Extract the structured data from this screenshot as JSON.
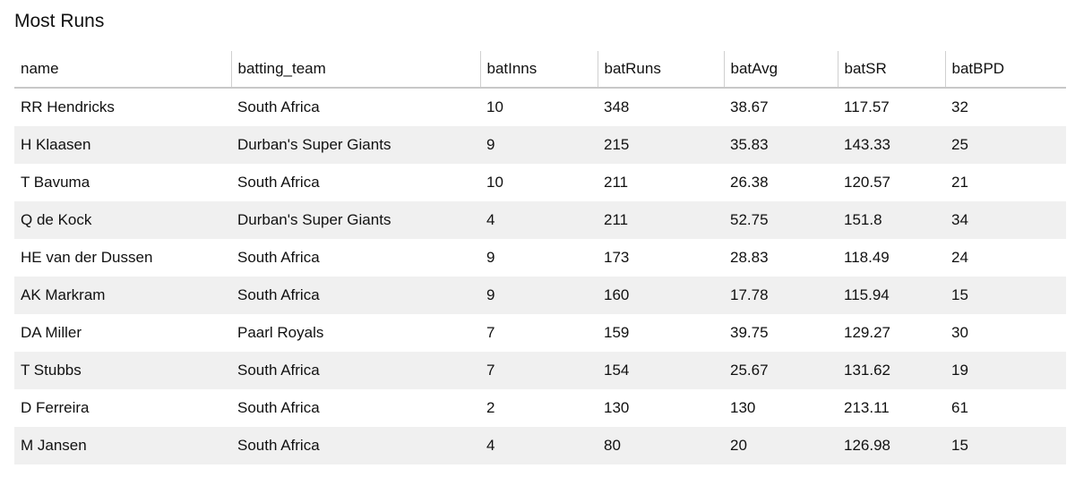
{
  "title": "Most Runs",
  "table": {
    "columns": [
      "name",
      "batting_team",
      "batInns",
      "batRuns",
      "batAvg",
      "batSR",
      "batBPD"
    ],
    "rows": [
      [
        "RR Hendricks",
        "South Africa",
        10,
        348,
        38.67,
        117.57,
        32
      ],
      [
        "H Klaasen",
        "Durban's Super Giants",
        9,
        215,
        35.83,
        143.33,
        25
      ],
      [
        "T Bavuma",
        "South Africa",
        10,
        211,
        26.38,
        120.57,
        21
      ],
      [
        "Q de Kock",
        "Durban's Super Giants",
        4,
        211,
        52.75,
        151.8,
        34
      ],
      [
        "HE van der Dussen",
        "South Africa",
        9,
        173,
        28.83,
        118.49,
        24
      ],
      [
        "AK Markram",
        "South Africa",
        9,
        160,
        17.78,
        115.94,
        15
      ],
      [
        "DA Miller",
        "Paarl Royals",
        7,
        159,
        39.75,
        129.27,
        30
      ],
      [
        "T Stubbs",
        "South Africa",
        7,
        154,
        25.67,
        131.62,
        19
      ],
      [
        "D Ferreira",
        "South Africa",
        2,
        130,
        130,
        213.11,
        61
      ],
      [
        "M Jansen",
        "South Africa",
        4,
        80,
        20,
        126.98,
        15
      ]
    ]
  }
}
